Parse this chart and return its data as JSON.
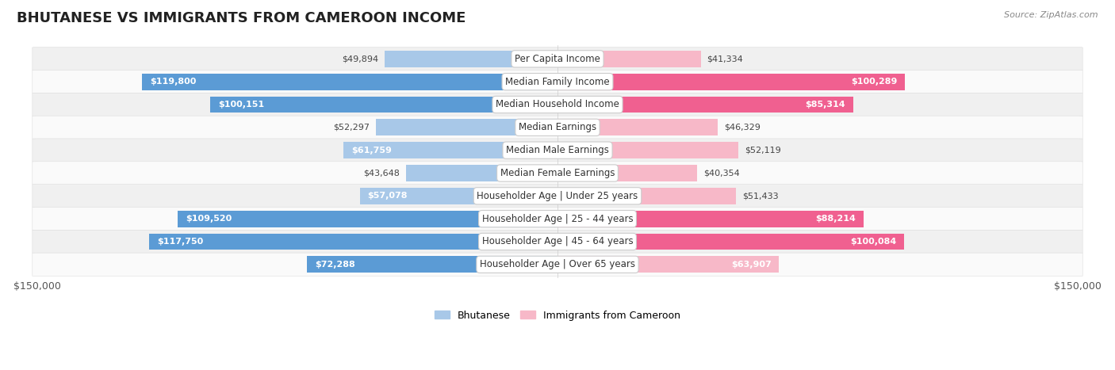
{
  "title": "BHUTANESE VS IMMIGRANTS FROM CAMEROON INCOME",
  "source": "Source: ZipAtlas.com",
  "categories": [
    "Per Capita Income",
    "Median Family Income",
    "Median Household Income",
    "Median Earnings",
    "Median Male Earnings",
    "Median Female Earnings",
    "Householder Age | Under 25 years",
    "Householder Age | 25 - 44 years",
    "Householder Age | 45 - 64 years",
    "Householder Age | Over 65 years"
  ],
  "bhutanese": [
    49894,
    119800,
    100151,
    52297,
    61759,
    43648,
    57078,
    109520,
    117750,
    72288
  ],
  "cameroon": [
    41334,
    100289,
    85314,
    46329,
    52119,
    40354,
    51433,
    88214,
    100084,
    63907
  ],
  "bhutanese_labels": [
    "$49,894",
    "$119,800",
    "$100,151",
    "$52,297",
    "$61,759",
    "$43,648",
    "$57,078",
    "$109,520",
    "$117,750",
    "$72,288"
  ],
  "cameroon_labels": [
    "$41,334",
    "$100,289",
    "$85,314",
    "$46,329",
    "$52,119",
    "$40,354",
    "$51,433",
    "$88,214",
    "$100,084",
    "$63,907"
  ],
  "bhutanese_inside": [
    false,
    true,
    true,
    false,
    false,
    false,
    false,
    true,
    true,
    false
  ],
  "cameroon_inside": [
    false,
    true,
    true,
    false,
    false,
    false,
    false,
    true,
    true,
    false
  ],
  "max_value": 150000,
  "xlim_label": "$150,000",
  "blue_light": "#A8C8E8",
  "blue_dark": "#5B9BD5",
  "pink_light": "#F7B8C8",
  "pink_dark": "#F06090",
  "row_colors": [
    "#EFEFEF",
    "#FFFFFF",
    "#EFEFEF",
    "#FFFFFF",
    "#EFEFEF",
    "#FFFFFF",
    "#EFEFEF",
    "#FFFFFF",
    "#EFEFEF",
    "#FFFFFF"
  ],
  "bg_color": "#FFFFFF",
  "bar_height": 0.72,
  "title_fontsize": 13,
  "source_fontsize": 8,
  "label_fontsize": 8,
  "cat_fontsize": 8.5
}
